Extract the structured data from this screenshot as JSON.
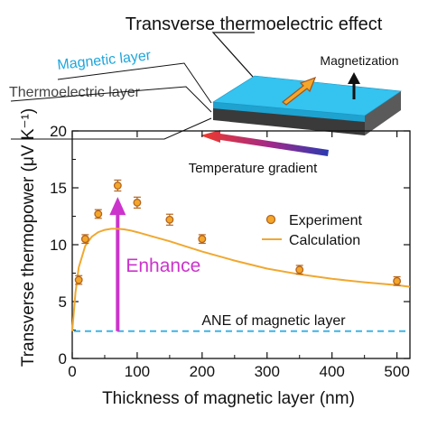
{
  "colors": {
    "experiment_fill": "#f4a62a",
    "experiment_stroke": "#b5651d",
    "calculation_line": "#f0a830",
    "ane_line": "#3eb4e6",
    "enhance": "#cc33cc",
    "magnetic_layer": "#35c3f0",
    "thermoelectric_layer": "#333333",
    "temperature_gradient_hot": "#f03a2a",
    "temperature_gradient_cold": "#2a3ab0"
  },
  "schematic": {
    "title": "Transverse thermoelectric effect",
    "magnetic_layer_label": "Magnetic layer",
    "thermoelectric_layer_label": "Thermoelectric layer",
    "magnetization_label": "Magnetization",
    "temperature_gradient_label": "Temperature gradient"
  },
  "annotations": {
    "enhance": "Enhance",
    "ane": "ANE of magnetic layer"
  },
  "chart_data": {
    "type": "scatter",
    "xlabel": "Thickness of magnetic layer (nm)",
    "ylabel": "Transverse thermopower (μV K⁻¹)",
    "xlim": [
      0,
      520
    ],
    "ylim": [
      0,
      20
    ],
    "xticks": [
      0,
      100,
      200,
      300,
      400,
      500
    ],
    "yticks": [
      0,
      5,
      10,
      15,
      20
    ],
    "grid": false,
    "legend": "right",
    "series": [
      {
        "name": "Experiment",
        "type": "scatter",
        "x": [
          10,
          20,
          40,
          70,
          100,
          150,
          200,
          350,
          500
        ],
        "y": [
          6.9,
          10.5,
          12.7,
          15.2,
          13.7,
          12.2,
          10.5,
          7.8,
          6.8
        ],
        "yerr": [
          0.3,
          0.3,
          0.3,
          0.4,
          0.4,
          0.4,
          0.3,
          0.3,
          0.3
        ]
      },
      {
        "name": "Calculation",
        "type": "line",
        "x": [
          0,
          5,
          10,
          20,
          30,
          40,
          50,
          60,
          70,
          80,
          90,
          100,
          125,
          150,
          175,
          200,
          250,
          300,
          350,
          400,
          450,
          500,
          520
        ],
        "y": [
          2.4,
          5.8,
          8.0,
          9.9,
          10.7,
          11.1,
          11.3,
          11.4,
          11.4,
          11.35,
          11.25,
          11.1,
          10.7,
          10.3,
          9.85,
          9.4,
          8.6,
          7.9,
          7.4,
          7.0,
          6.7,
          6.45,
          6.3
        ]
      }
    ],
    "reference_line": {
      "label": "ANE of magnetic layer",
      "y": 2.4
    },
    "enhance_arrow": {
      "label": "Enhance",
      "x": 70,
      "from": 2.4,
      "to": 14.2
    }
  }
}
